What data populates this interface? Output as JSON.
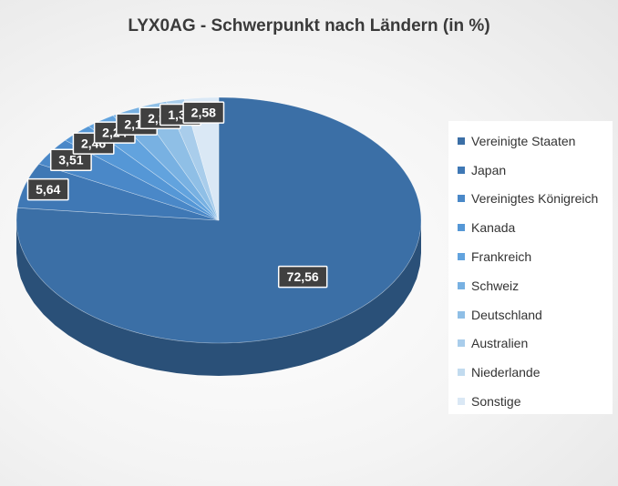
{
  "chart_data": {
    "type": "pie",
    "title": "LYX0AG - Schwerpunkt nach Ländern (in %)",
    "categories": [
      "Vereinigte Staaten",
      "Japan",
      "Vereinigtes Königreich",
      "Kanada",
      "Frankreich",
      "Schweiz",
      "Deutschland",
      "Australien",
      "Niederlande",
      "Sonstige"
    ],
    "values": [
      72.56,
      5.64,
      3.51,
      2.46,
      2.24,
      2.14,
      2.19,
      1.38,
      0.0,
      2.58
    ],
    "data_labels": [
      "72,56",
      "5,64",
      "3,51",
      "2,46",
      "2,24",
      "2,14",
      "2,19",
      "1,38",
      "",
      "2,58"
    ],
    "colors": [
      "#3b6fa6",
      "#3f78b5",
      "#4a88c8",
      "#5597d6",
      "#62a3de",
      "#78b1e2",
      "#8fbfe6",
      "#a9cdeb",
      "#c2dbef",
      "#dae8f5"
    ],
    "legend_position": "right",
    "style": "3d"
  }
}
